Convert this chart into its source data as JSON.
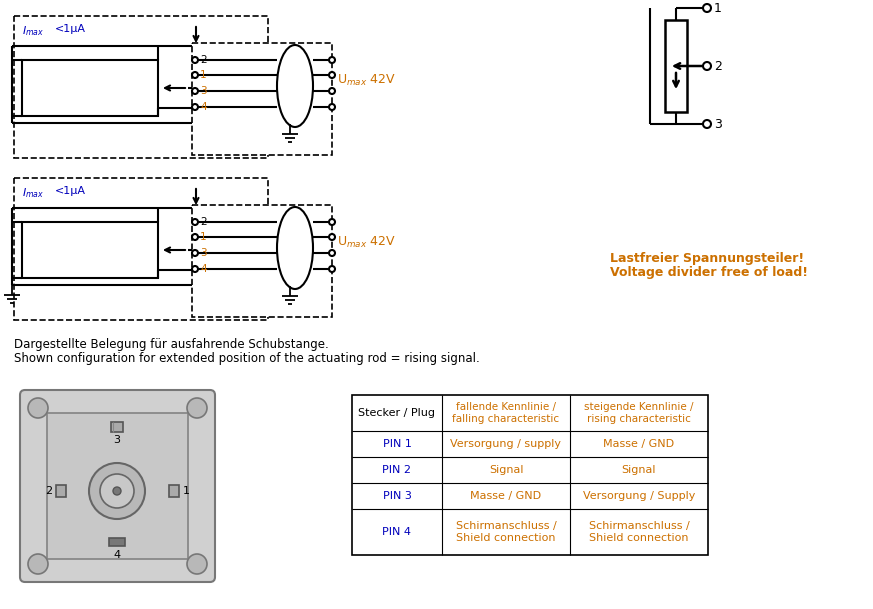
{
  "bg_color": "#ffffff",
  "lc": "#000000",
  "oc": "#CC7000",
  "bc": "#0000BB",
  "gc": "#555555",
  "imax_text": "I",
  "imax_sub": "max",
  "imax_rest": " <1μA",
  "umax_text": "U",
  "umax_sub": "max",
  "umax_rest": " 42V",
  "desc1": "Dargestellte Belegung für ausfahrende Schubstange.",
  "desc2": "Shown configuration for extended position of the actuating rod = rising signal.",
  "lastfrei1": "Lastfreier Spannungsteiler!",
  "lastfrei2": "Voltage divider free of load!",
  "pin_labels": [
    "2",
    "1",
    "3",
    "4"
  ],
  "col0_hdr": "Stecker / Plug",
  "col1_hdr": "fallende Kennlinie /\nfalling characteristic",
  "col2_hdr": "steigende Kennlinie /\nrising characteristic",
  "table_rows": [
    [
      "PIN 1",
      "Versorgung / supply",
      "Masse / GND"
    ],
    [
      "PIN 2",
      "Signal",
      "Signal"
    ],
    [
      "PIN 3",
      "Masse / GND",
      "Versorgung / Supply"
    ],
    [
      "PIN 4",
      "Schirmanschluss /\nShield connection",
      "Schirmanschluss /\nShield connection"
    ]
  ]
}
